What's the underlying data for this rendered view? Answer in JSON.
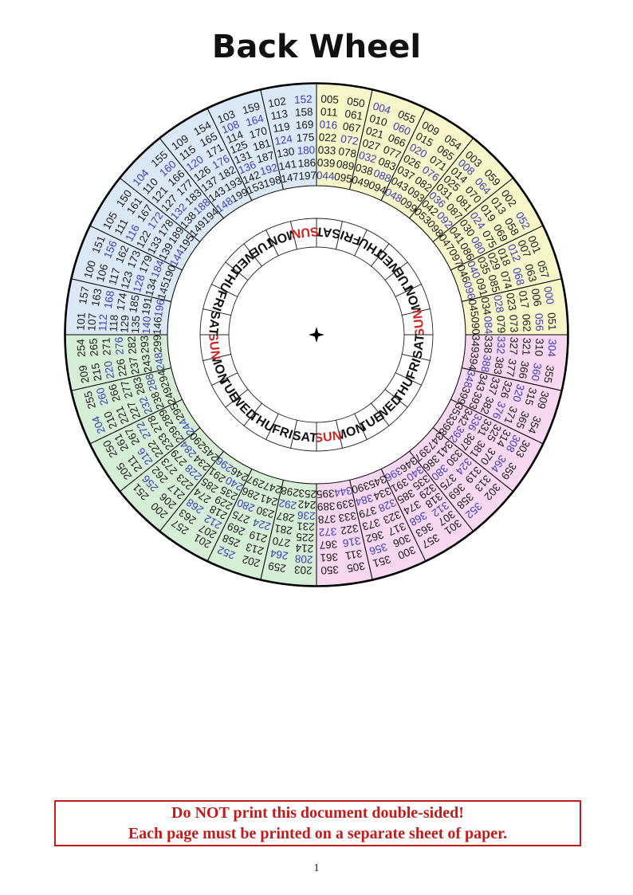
{
  "page": {
    "title": "Back Wheel",
    "page_number": "1"
  },
  "warning": {
    "line1": "Do NOT print this document double-sided!",
    "line2": "Each page must be printed on a separate sheet of paper."
  },
  "colors": {
    "quadrant_yellow": "#f6f6c8",
    "quadrant_pink": "#f7d8f0",
    "quadrant_green": "#d6edd6",
    "quadrant_blue": "#dbe9f6",
    "regular_number": "#1a1a1a",
    "leap_year_number": "#3c3cbe",
    "sunday_label": "#cc2521",
    "weekday_label": "#111111",
    "stroke": "#000000",
    "warning_red": "#c41a1a"
  },
  "wheel": {
    "day_ring": {
      "cells": [
        "SAT",
        "FRI",
        "THU",
        "WED",
        "TUE",
        "MON",
        "SUN",
        "SAT",
        "FRI",
        "THU",
        "WED",
        "TUE",
        "MON",
        "SUN",
        "SAT",
        "FRI",
        "THU",
        "WED",
        "TUE",
        "MON",
        "SUN",
        "SAT",
        "FRI",
        "THU",
        "WED",
        "TUE",
        "MON",
        "SUN"
      ]
    },
    "quadrants": [
      {
        "name": "years-000-099",
        "color_key": "quadrant_yellow",
        "start_angle": 0,
        "sectors": [
          [
            "005",
            "011",
            "016",
            "022",
            "033",
            "039",
            "044",
            "050",
            "061",
            "067",
            "072",
            "078",
            "089",
            "095"
          ],
          [
            "004",
            "010",
            "021",
            "027",
            "032",
            "038",
            "049",
            "055",
            "060",
            "066",
            "077",
            "083",
            "088",
            "094"
          ],
          [
            "009",
            "015",
            "020",
            "026",
            "037",
            "043",
            "048",
            "054",
            "065",
            "071",
            "076",
            "082",
            "093",
            "099"
          ],
          [
            "003",
            "008",
            "014",
            "025",
            "031",
            "036",
            "042",
            "053",
            "059",
            "064",
            "070",
            "081",
            "087",
            "092",
            "098"
          ],
          [
            "002",
            "013",
            "019",
            "024",
            "030",
            "041",
            "047",
            "052",
            "058",
            "069",
            "075",
            "080",
            "086",
            "097"
          ],
          [
            "001",
            "007",
            "012",
            "018",
            "029",
            "035",
            "040",
            "046",
            "057",
            "063",
            "068",
            "074",
            "085",
            "091",
            "096"
          ],
          [
            "000",
            "006",
            "017",
            "023",
            "028",
            "034",
            "045",
            "051",
            "056",
            "062",
            "073",
            "079",
            "084",
            "090"
          ]
        ]
      },
      {
        "name": "years-300-399",
        "color_key": "quadrant_pink",
        "start_angle": 90,
        "sectors": [
          [
            "304",
            "310",
            "321",
            "327",
            "332",
            "338",
            "349",
            "355",
            "360",
            "366",
            "377",
            "383",
            "388",
            "394"
          ],
          [
            "309",
            "315",
            "320",
            "326",
            "337",
            "343",
            "348",
            "354",
            "365",
            "371",
            "376",
            "382",
            "393",
            "399"
          ],
          [
            "303",
            "308",
            "314",
            "325",
            "331",
            "336",
            "342",
            "353",
            "359",
            "364",
            "370",
            "381",
            "387",
            "392",
            "398"
          ],
          [
            "302",
            "313",
            "319",
            "324",
            "330",
            "341",
            "347",
            "352",
            "358",
            "369",
            "375",
            "380",
            "386",
            "397"
          ],
          [
            "301",
            "307",
            "312",
            "318",
            "329",
            "335",
            "340",
            "346",
            "357",
            "363",
            "368",
            "374",
            "385",
            "391",
            "396"
          ],
          [
            "300",
            "306",
            "317",
            "323",
            "328",
            "334",
            "345",
            "351",
            "356",
            "362",
            "373",
            "379",
            "384",
            "390"
          ],
          [
            "305",
            "311",
            "316",
            "322",
            "333",
            "339",
            "344",
            "350",
            "361",
            "367",
            "372",
            "378",
            "389",
            "395"
          ]
        ]
      },
      {
        "name": "years-200-299",
        "color_key": "quadrant_green",
        "start_angle": 180,
        "sectors": [
          [
            "203",
            "208",
            "214",
            "225",
            "231",
            "236",
            "242",
            "253",
            "259",
            "264",
            "270",
            "281",
            "287",
            "292",
            "298"
          ],
          [
            "202",
            "213",
            "219",
            "224",
            "230",
            "241",
            "247",
            "252",
            "258",
            "269",
            "275",
            "280",
            "286",
            "297"
          ],
          [
            "201",
            "207",
            "212",
            "218",
            "229",
            "235",
            "240",
            "246",
            "257",
            "263",
            "268",
            "274",
            "285",
            "291",
            "296"
          ],
          [
            "200",
            "206",
            "217",
            "223",
            "228",
            "234",
            "245",
            "251",
            "256",
            "262",
            "273",
            "279",
            "284",
            "290"
          ],
          [
            "205",
            "211",
            "216",
            "222",
            "233",
            "239",
            "244",
            "250",
            "261",
            "267",
            "272",
            "278",
            "289",
            "295"
          ],
          [
            "204",
            "210",
            "221",
            "227",
            "232",
            "238",
            "249",
            "255",
            "260",
            "266",
            "277",
            "283",
            "288",
            "294"
          ],
          [
            "209",
            "215",
            "220",
            "226",
            "237",
            "243",
            "248",
            "254",
            "265",
            "271",
            "276",
            "282",
            "293",
            "299"
          ]
        ]
      },
      {
        "name": "years-100-199",
        "color_key": "quadrant_blue",
        "start_angle": 270,
        "sectors": [
          [
            "101",
            "107",
            "112",
            "118",
            "129",
            "135",
            "140",
            "146",
            "157",
            "163",
            "168",
            "174",
            "185",
            "191",
            "196"
          ],
          [
            "100",
            "106",
            "117",
            "123",
            "128",
            "134",
            "145",
            "151",
            "156",
            "162",
            "173",
            "179",
            "184",
            "190"
          ],
          [
            "105",
            "111",
            "116",
            "122",
            "133",
            "139",
            "144",
            "150",
            "161",
            "167",
            "172",
            "178",
            "189",
            "195"
          ],
          [
            "104",
            "110",
            "121",
            "127",
            "132",
            "138",
            "149",
            "155",
            "160",
            "166",
            "177",
            "183",
            "188",
            "194"
          ],
          [
            "109",
            "115",
            "120",
            "126",
            "137",
            "143",
            "148",
            "154",
            "165",
            "171",
            "176",
            "182",
            "193",
            "199"
          ],
          [
            "103",
            "108",
            "114",
            "125",
            "131",
            "136",
            "142",
            "153",
            "159",
            "164",
            "170",
            "181",
            "187",
            "192",
            "198"
          ],
          [
            "102",
            "113",
            "119",
            "124",
            "130",
            "141",
            "147",
            "152",
            "158",
            "169",
            "175",
            "180",
            "186",
            "197"
          ]
        ]
      }
    ]
  }
}
